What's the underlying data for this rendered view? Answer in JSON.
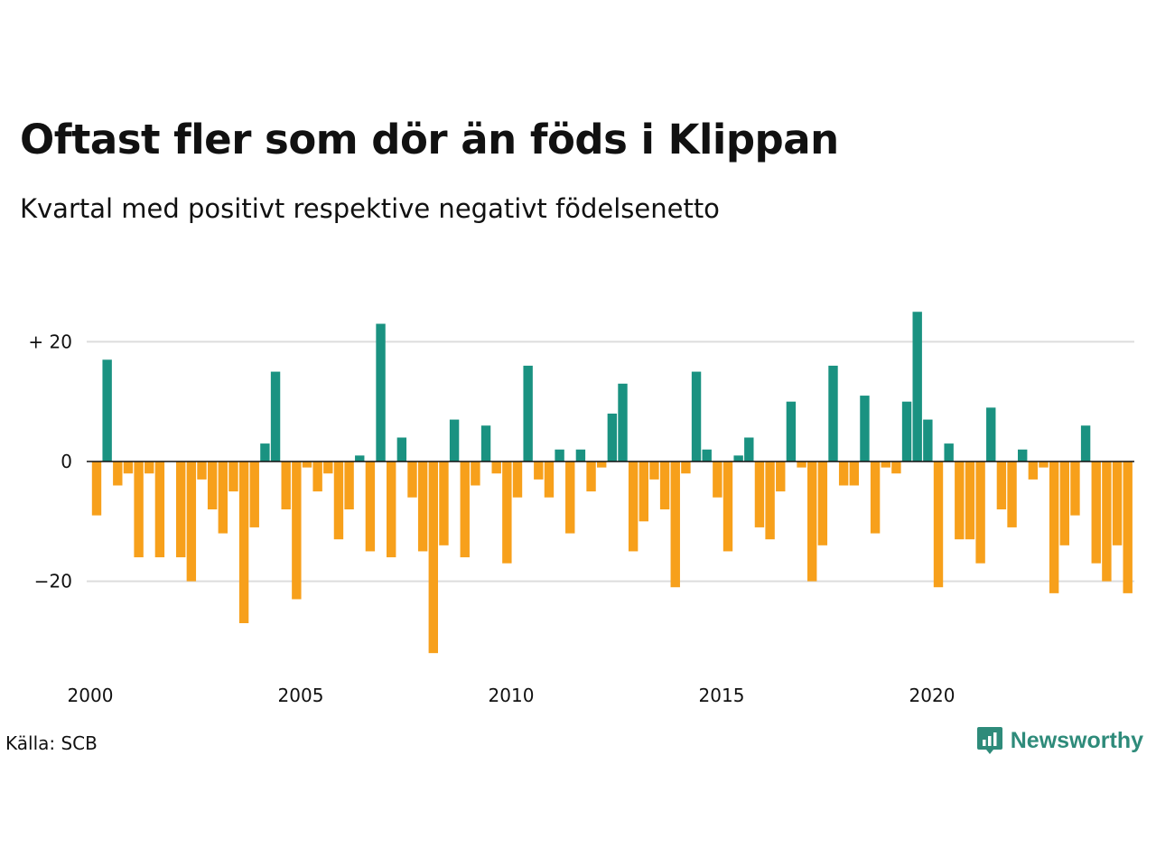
{
  "title": "Oftast fler som dör än föds i Klippan",
  "subtitle": "Kvartal med positivt respektive negativt födelsenetto",
  "source": "Källa: SCB",
  "brand": {
    "name": "Newsworthy",
    "icon": "newsworthy-logo-icon"
  },
  "colors": {
    "positive": "#1a9281",
    "negative": "#f7a01b",
    "grid": "#dddddd",
    "zero": "#111111",
    "brand": "#2e8b7a"
  },
  "chart_data": {
    "type": "bar",
    "title": "Oftast fler som dör än föds i Klippan",
    "subtitle": "Kvartal med positivt respektive negativt födelsenetto",
    "xlabel": "",
    "ylabel": "",
    "x_start": 2000,
    "periods_per_year": 4,
    "x_ticks": [
      2000,
      2005,
      2010,
      2015,
      2020
    ],
    "y_ticks": [
      {
        "value": 20,
        "label": "+ 20"
      },
      {
        "value": 0,
        "label": "0"
      },
      {
        "value": -20,
        "label": "−20"
      }
    ],
    "ylim": [
      -32,
      25
    ],
    "grid": true,
    "values": [
      -9,
      17,
      -4,
      -2,
      -16,
      -2,
      -16,
      0,
      -16,
      -20,
      -3,
      -8,
      -12,
      -5,
      -27,
      -11,
      3,
      15,
      -8,
      -23,
      -1,
      -5,
      -2,
      -13,
      -8,
      1,
      -15,
      23,
      -16,
      4,
      -6,
      -15,
      -32,
      -14,
      7,
      -16,
      -4,
      6,
      -2,
      -17,
      -6,
      16,
      -3,
      -6,
      2,
      -12,
      2,
      -5,
      -1,
      8,
      13,
      -15,
      -10,
      -3,
      -8,
      -21,
      -2,
      15,
      2,
      -6,
      -15,
      1,
      4,
      -11,
      -13,
      -5,
      10,
      -1,
      -20,
      -14,
      16,
      -4,
      -4,
      11,
      -12,
      -1,
      -2,
      10,
      25,
      7,
      -21,
      3,
      -13,
      -13,
      -17,
      9,
      -8,
      -11,
      2,
      -3,
      -1,
      -22,
      -14,
      -9,
      6,
      -17,
      -20,
      -14,
      -22
    ]
  }
}
